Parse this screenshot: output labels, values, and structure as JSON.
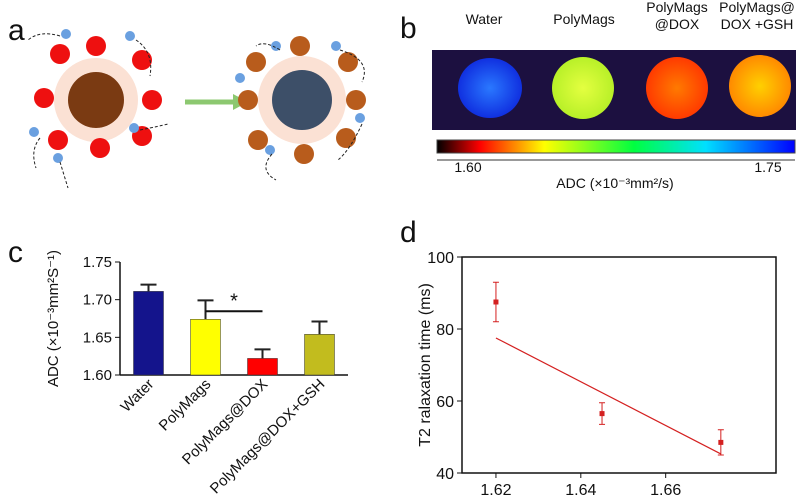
{
  "panel_labels": [
    "a",
    "b",
    "c",
    "d"
  ],
  "panel_b": {
    "labels": [
      [
        "Water"
      ],
      [
        "PolyMags"
      ],
      [
        "PolyMags",
        "@DOX"
      ],
      [
        "PolyMags@",
        "DOX +GSH"
      ]
    ],
    "colorbar_min": "1.60",
    "colorbar_max": "1.75",
    "colorbar_label": "ADC (×10⁻³mm²/s)"
  },
  "chart_data": [
    {
      "type": "bar",
      "ylabel": "ADC (×10⁻³mm²S⁻¹)",
      "categories": [
        "Water",
        "PolyMags",
        "PolyMags@DOX",
        "PolyMags@DOX+GSH"
      ],
      "values": [
        1.711,
        1.674,
        1.622,
        1.654
      ],
      "errors": [
        0.009,
        0.025,
        0.012,
        0.017
      ],
      "colors": [
        "#14148c",
        "#ffff00",
        "#ff0000",
        "#c2bc1e"
      ],
      "ylim": [
        1.6,
        1.75
      ],
      "yticks": [
        {
          "value": 1.6,
          "label": "1.60"
        },
        {
          "value": 1.65,
          "label": "1.65"
        },
        {
          "value": 1.7,
          "label": "1.70"
        },
        {
          "value": 1.75,
          "label": "1.75"
        }
      ],
      "annotation": "*"
    },
    {
      "type": "scatter",
      "ylabel": "T2 ralaxation time (ms)",
      "x": [
        1.62,
        1.645,
        1.673
      ],
      "values": [
        87.5,
        56.5,
        48.5
      ],
      "errors": [
        5.5,
        3,
        3.5
      ],
      "color": "#d42020",
      "fit_line": {
        "x": [
          1.62,
          1.673
        ],
        "values": [
          77.5,
          45.3
        ]
      },
      "xlim": [
        1.612,
        1.686
      ],
      "ylim": [
        40,
        100
      ],
      "xticks": [
        1.62,
        1.64,
        1.66
      ],
      "yticks": [
        40,
        60,
        80,
        100
      ]
    }
  ]
}
